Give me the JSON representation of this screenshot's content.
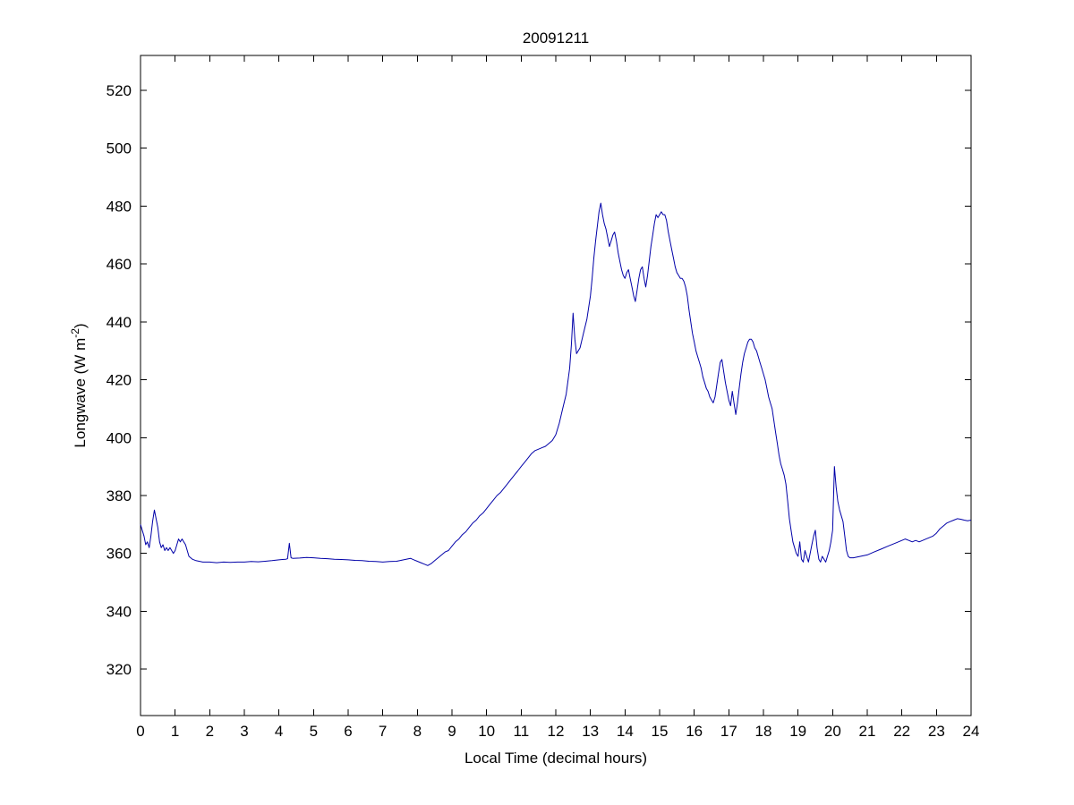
{
  "figure": {
    "background": "#ffffff"
  },
  "chart_data": {
    "type": "line",
    "title": "20091211",
    "xlabel": "Local Time (decimal hours)",
    "ylabel": "Longwave (W m⁻²)",
    "ylabel_parts": {
      "pre": "Longwave (W m",
      "sup": "-2",
      "post": ")"
    },
    "xlim": [
      0,
      24
    ],
    "ylim": [
      304,
      532
    ],
    "xticks": [
      0,
      1,
      2,
      3,
      4,
      5,
      6,
      7,
      8,
      9,
      10,
      11,
      12,
      13,
      14,
      15,
      16,
      17,
      18,
      19,
      20,
      21,
      22,
      23,
      24
    ],
    "yticks": [
      320,
      340,
      360,
      380,
      400,
      420,
      440,
      460,
      480,
      500,
      520
    ],
    "grid": false,
    "legend": "none",
    "axis_color": "#000000",
    "series": [
      {
        "name": "longwave_irradiance",
        "color": "#0000a8",
        "points": [
          [
            0,
            370
          ],
          [
            0.05,
            368
          ],
          [
            0.1,
            366
          ],
          [
            0.15,
            363
          ],
          [
            0.2,
            364
          ],
          [
            0.25,
            362
          ],
          [
            0.3,
            366
          ],
          [
            0.35,
            371
          ],
          [
            0.4,
            375
          ],
          [
            0.45,
            372
          ],
          [
            0.5,
            369
          ],
          [
            0.55,
            364
          ],
          [
            0.6,
            362
          ],
          [
            0.65,
            363
          ],
          [
            0.7,
            361
          ],
          [
            0.75,
            362
          ],
          [
            0.8,
            361
          ],
          [
            0.85,
            362
          ],
          [
            0.9,
            361
          ],
          [
            0.95,
            360
          ],
          [
            1,
            361
          ],
          [
            1.05,
            363
          ],
          [
            1.1,
            365
          ],
          [
            1.15,
            364
          ],
          [
            1.2,
            365
          ],
          [
            1.25,
            364
          ],
          [
            1.3,
            363
          ],
          [
            1.4,
            359
          ],
          [
            1.5,
            358
          ],
          [
            1.6,
            357.5
          ],
          [
            1.8,
            357
          ],
          [
            2,
            357
          ],
          [
            2.2,
            356.8
          ],
          [
            2.4,
            357
          ],
          [
            2.6,
            356.9
          ],
          [
            2.8,
            357
          ],
          [
            3,
            357
          ],
          [
            3.2,
            357.2
          ],
          [
            3.4,
            357.1
          ],
          [
            3.6,
            357.3
          ],
          [
            3.8,
            357.5
          ],
          [
            4,
            357.8
          ],
          [
            4.1,
            357.9
          ],
          [
            4.2,
            358
          ],
          [
            4.25,
            358.2
          ],
          [
            4.3,
            363.5
          ],
          [
            4.35,
            358.5
          ],
          [
            4.4,
            358.3
          ],
          [
            4.6,
            358.4
          ],
          [
            4.8,
            358.6
          ],
          [
            5,
            358.5
          ],
          [
            5.2,
            358.3
          ],
          [
            5.4,
            358.2
          ],
          [
            5.6,
            358
          ],
          [
            5.8,
            357.9
          ],
          [
            6,
            357.8
          ],
          [
            6.2,
            357.6
          ],
          [
            6.4,
            357.5
          ],
          [
            6.6,
            357.3
          ],
          [
            6.8,
            357.2
          ],
          [
            7,
            357
          ],
          [
            7.2,
            357.2
          ],
          [
            7.4,
            357.3
          ],
          [
            7.6,
            357.8
          ],
          [
            7.8,
            358.3
          ],
          [
            7.9,
            357.8
          ],
          [
            8,
            357.3
          ],
          [
            8.1,
            356.8
          ],
          [
            8.2,
            356.3
          ],
          [
            8.3,
            355.8
          ],
          [
            8.4,
            356.5
          ],
          [
            8.5,
            357.5
          ],
          [
            8.6,
            358.5
          ],
          [
            8.7,
            359.5
          ],
          [
            8.8,
            360.5
          ],
          [
            8.9,
            361
          ],
          [
            9,
            362.5
          ],
          [
            9.1,
            364
          ],
          [
            9.2,
            365
          ],
          [
            9.3,
            366.5
          ],
          [
            9.4,
            367.5
          ],
          [
            9.5,
            369
          ],
          [
            9.6,
            370.5
          ],
          [
            9.7,
            371.5
          ],
          [
            9.8,
            373
          ],
          [
            9.9,
            374
          ],
          [
            10,
            375.5
          ],
          [
            10.1,
            377
          ],
          [
            10.2,
            378.5
          ],
          [
            10.3,
            380
          ],
          [
            10.4,
            381
          ],
          [
            10.5,
            382.5
          ],
          [
            10.6,
            384
          ],
          [
            10.7,
            385.5
          ],
          [
            10.8,
            387
          ],
          [
            10.9,
            388.5
          ],
          [
            11,
            390
          ],
          [
            11.1,
            391.5
          ],
          [
            11.2,
            393
          ],
          [
            11.3,
            394.5
          ],
          [
            11.4,
            395.5
          ],
          [
            11.5,
            396
          ],
          [
            11.6,
            396.5
          ],
          [
            11.7,
            397
          ],
          [
            11.8,
            398
          ],
          [
            11.9,
            399
          ],
          [
            12,
            401
          ],
          [
            12.1,
            405
          ],
          [
            12.2,
            410
          ],
          [
            12.3,
            415
          ],
          [
            12.4,
            424
          ],
          [
            12.45,
            432
          ],
          [
            12.5,
            443
          ],
          [
            12.55,
            434
          ],
          [
            12.6,
            429
          ],
          [
            12.7,
            431
          ],
          [
            12.8,
            436
          ],
          [
            12.9,
            441
          ],
          [
            13,
            449
          ],
          [
            13.05,
            455
          ],
          [
            13.1,
            462
          ],
          [
            13.15,
            468
          ],
          [
            13.2,
            473
          ],
          [
            13.25,
            478
          ],
          [
            13.3,
            481
          ],
          [
            13.35,
            477
          ],
          [
            13.4,
            474
          ],
          [
            13.45,
            472
          ],
          [
            13.5,
            469
          ],
          [
            13.55,
            466
          ],
          [
            13.6,
            468
          ],
          [
            13.65,
            470
          ],
          [
            13.7,
            471
          ],
          [
            13.75,
            468
          ],
          [
            13.8,
            464
          ],
          [
            13.85,
            461
          ],
          [
            13.9,
            458
          ],
          [
            13.95,
            456
          ],
          [
            14,
            455
          ],
          [
            14.05,
            457
          ],
          [
            14.1,
            458
          ],
          [
            14.15,
            455
          ],
          [
            14.2,
            452
          ],
          [
            14.25,
            449
          ],
          [
            14.3,
            447
          ],
          [
            14.35,
            451
          ],
          [
            14.4,
            455
          ],
          [
            14.45,
            458
          ],
          [
            14.5,
            459
          ],
          [
            14.55,
            455
          ],
          [
            14.6,
            452
          ],
          [
            14.65,
            456
          ],
          [
            14.7,
            461
          ],
          [
            14.75,
            466
          ],
          [
            14.8,
            470
          ],
          [
            14.85,
            474
          ],
          [
            14.9,
            477
          ],
          [
            14.95,
            476
          ],
          [
            15,
            477
          ],
          [
            15.05,
            478
          ],
          [
            15.1,
            477
          ],
          [
            15.15,
            477
          ],
          [
            15.2,
            475
          ],
          [
            15.25,
            471
          ],
          [
            15.3,
            468
          ],
          [
            15.35,
            465
          ],
          [
            15.4,
            462
          ],
          [
            15.45,
            459
          ],
          [
            15.5,
            457
          ],
          [
            15.55,
            456
          ],
          [
            15.6,
            455
          ],
          [
            15.65,
            455
          ],
          [
            15.7,
            454
          ],
          [
            15.75,
            452
          ],
          [
            15.8,
            449
          ],
          [
            15.85,
            444
          ],
          [
            15.9,
            440
          ],
          [
            15.95,
            436
          ],
          [
            16,
            433
          ],
          [
            16.05,
            430
          ],
          [
            16.1,
            428
          ],
          [
            16.15,
            426
          ],
          [
            16.2,
            424
          ],
          [
            16.25,
            421
          ],
          [
            16.3,
            419
          ],
          [
            16.35,
            417
          ],
          [
            16.4,
            416
          ],
          [
            16.45,
            414
          ],
          [
            16.5,
            413
          ],
          [
            16.55,
            412
          ],
          [
            16.6,
            414
          ],
          [
            16.65,
            418
          ],
          [
            16.7,
            422
          ],
          [
            16.75,
            426
          ],
          [
            16.8,
            427
          ],
          [
            16.85,
            423
          ],
          [
            16.9,
            419
          ],
          [
            16.95,
            416
          ],
          [
            17,
            413
          ],
          [
            17.05,
            411
          ],
          [
            17.1,
            416
          ],
          [
            17.15,
            412
          ],
          [
            17.2,
            408
          ],
          [
            17.25,
            412
          ],
          [
            17.3,
            417
          ],
          [
            17.35,
            422
          ],
          [
            17.4,
            426
          ],
          [
            17.45,
            429
          ],
          [
            17.5,
            431
          ],
          [
            17.55,
            433
          ],
          [
            17.6,
            434
          ],
          [
            17.65,
            434
          ],
          [
            17.7,
            433
          ],
          [
            17.75,
            431
          ],
          [
            17.8,
            430
          ],
          [
            17.85,
            428
          ],
          [
            17.9,
            426
          ],
          [
            17.95,
            424
          ],
          [
            18,
            422
          ],
          [
            18.05,
            420
          ],
          [
            18.1,
            417
          ],
          [
            18.15,
            414
          ],
          [
            18.2,
            412
          ],
          [
            18.25,
            410
          ],
          [
            18.3,
            406
          ],
          [
            18.35,
            402
          ],
          [
            18.4,
            398
          ],
          [
            18.45,
            394
          ],
          [
            18.5,
            391
          ],
          [
            18.55,
            389
          ],
          [
            18.6,
            387
          ],
          [
            18.65,
            384
          ],
          [
            18.7,
            378
          ],
          [
            18.75,
            372
          ],
          [
            18.8,
            368
          ],
          [
            18.85,
            364
          ],
          [
            18.9,
            362
          ],
          [
            18.95,
            360
          ],
          [
            19,
            359
          ],
          [
            19.05,
            364
          ],
          [
            19.1,
            358
          ],
          [
            19.15,
            357
          ],
          [
            19.2,
            361
          ],
          [
            19.25,
            359
          ],
          [
            19.3,
            357
          ],
          [
            19.35,
            360
          ],
          [
            19.4,
            363
          ],
          [
            19.45,
            366
          ],
          [
            19.5,
            368
          ],
          [
            19.55,
            362
          ],
          [
            19.6,
            358
          ],
          [
            19.65,
            357
          ],
          [
            19.7,
            359
          ],
          [
            19.75,
            358
          ],
          [
            19.8,
            357
          ],
          [
            19.85,
            359
          ],
          [
            19.9,
            361
          ],
          [
            19.95,
            364
          ],
          [
            20,
            368
          ],
          [
            20.05,
            390
          ],
          [
            20.1,
            383
          ],
          [
            20.15,
            378
          ],
          [
            20.2,
            375
          ],
          [
            20.25,
            373
          ],
          [
            20.3,
            371
          ],
          [
            20.35,
            366
          ],
          [
            20.4,
            361
          ],
          [
            20.45,
            359
          ],
          [
            20.5,
            358.5
          ],
          [
            20.6,
            358.5
          ],
          [
            20.8,
            359
          ],
          [
            21,
            359.5
          ],
          [
            21.2,
            360.5
          ],
          [
            21.4,
            361.5
          ],
          [
            21.6,
            362.5
          ],
          [
            21.8,
            363.5
          ],
          [
            22,
            364.5
          ],
          [
            22.1,
            365
          ],
          [
            22.2,
            364.5
          ],
          [
            22.3,
            364
          ],
          [
            22.4,
            364.5
          ],
          [
            22.5,
            364
          ],
          [
            22.6,
            364.5
          ],
          [
            22.7,
            365
          ],
          [
            22.8,
            365.5
          ],
          [
            22.9,
            366
          ],
          [
            23,
            367
          ],
          [
            23.1,
            368.5
          ],
          [
            23.2,
            369.5
          ],
          [
            23.3,
            370.5
          ],
          [
            23.4,
            371
          ],
          [
            23.5,
            371.5
          ],
          [
            23.6,
            372
          ],
          [
            23.7,
            371.8
          ],
          [
            23.8,
            371.5
          ],
          [
            23.9,
            371.3
          ],
          [
            24,
            371.5
          ]
        ]
      }
    ]
  }
}
